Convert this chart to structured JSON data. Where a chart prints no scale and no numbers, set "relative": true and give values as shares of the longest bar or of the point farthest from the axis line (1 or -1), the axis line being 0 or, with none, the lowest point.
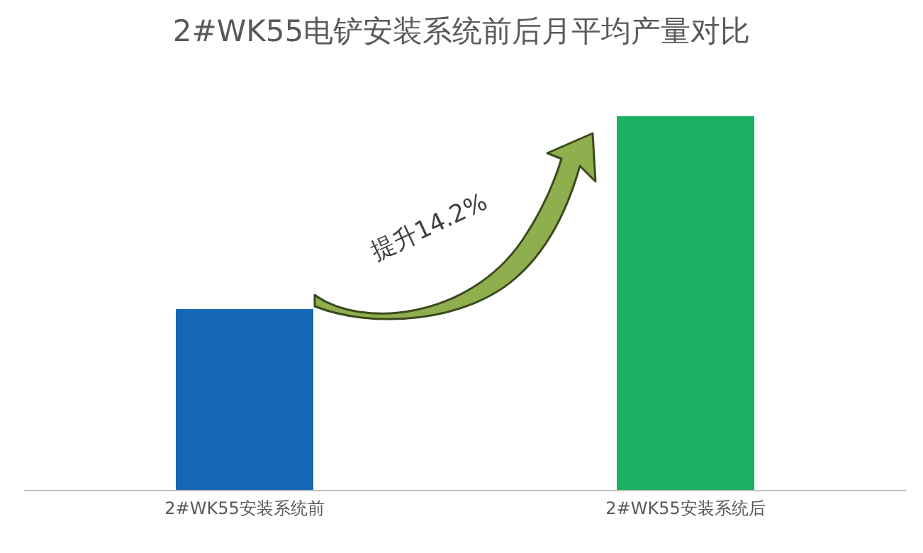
{
  "chart_data": {
    "type": "bar",
    "title": "2#WK55电铲安装系统前后月平均产量对比",
    "categories": [
      "2#WK55安装系统前",
      "2#WK55安装系统后"
    ],
    "values": [
      0.485,
      1
    ],
    "colors": [
      "#1668b4",
      "#1bb062"
    ],
    "relative": true,
    "annotations": [
      "提升14.2%"
    ]
  }
}
